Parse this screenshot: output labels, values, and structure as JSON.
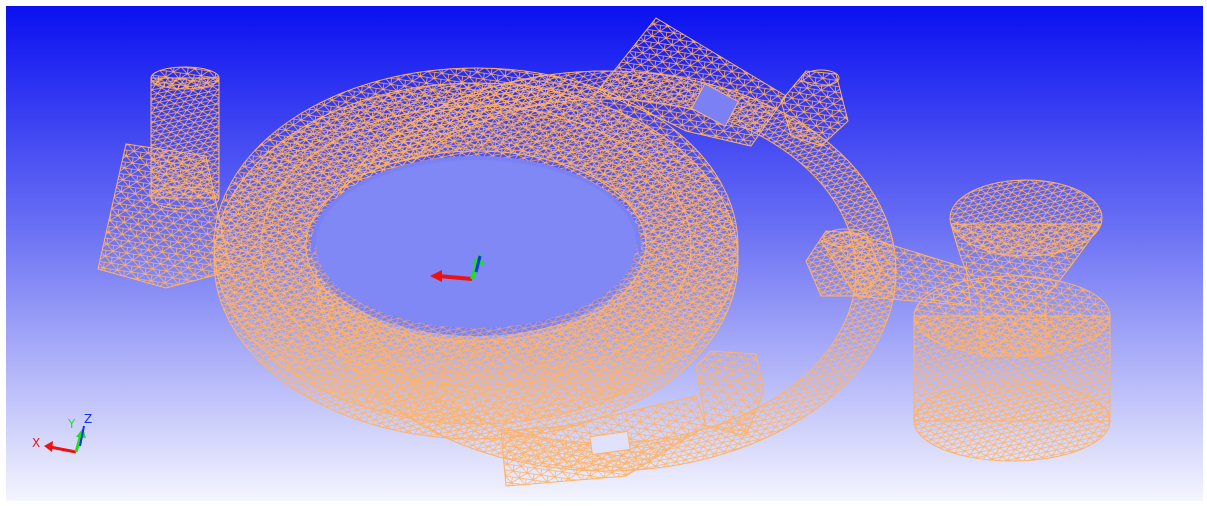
{
  "viewport": {
    "background_top": "#0a10f0",
    "background_bottom": "#f4f5fd",
    "mesh_color": "#ffb266"
  },
  "triad": {
    "x_label": "X",
    "y_label": "Y",
    "z_label": "Z",
    "x_color": "#ee1111",
    "y_color": "#22dd22",
    "z_color": "#1133ee"
  }
}
